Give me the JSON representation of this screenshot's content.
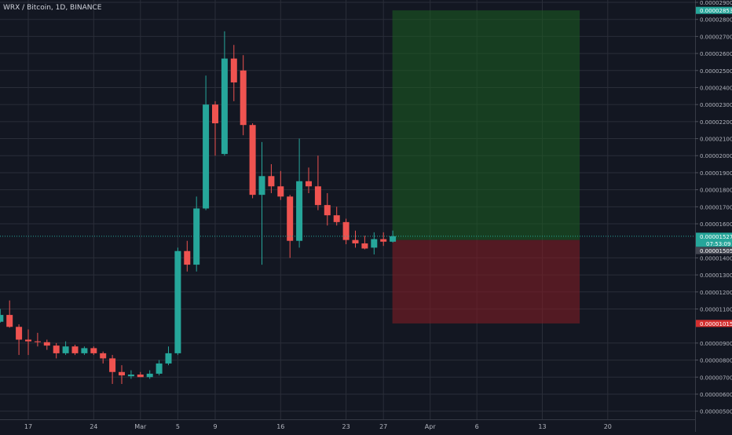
{
  "symbol_title": "WRX / Bitcoin, 1D, BINANCE",
  "colors": {
    "background": "#131722",
    "grid": "#2a2e39",
    "axis_text": "#b2b5be",
    "up": "#26a69a",
    "down": "#ef5350",
    "profit_zone": "#1b5e20",
    "loss_zone": "#7f1d24",
    "target_label": "#26a69a",
    "stop_label": "#d32f2f",
    "current_label": "#26a69a",
    "entry_label": "#434651"
  },
  "price_axis": {
    "min": 4.5e-06,
    "max": 2.9e-05,
    "ticks": [
      "0.00000500",
      "0.00000600",
      "0.00000700",
      "0.00000800",
      "0.00000900",
      "0.00001100",
      "0.00001200",
      "0.00001300",
      "0.00001400",
      "0.00001600",
      "0.00001700",
      "0.00001800",
      "0.00001900",
      "0.00002000",
      "0.00002100",
      "0.00002200",
      "0.00002300",
      "0.00002400",
      "0.00002500",
      "0.00002600",
      "0.00002700",
      "0.00002800",
      "0.00002900"
    ]
  },
  "time_axis": {
    "labels": [
      {
        "date": "2021-02-17",
        "text": "17"
      },
      {
        "date": "2021-02-24",
        "text": "24"
      },
      {
        "date": "2021-03-01",
        "text": "Mar"
      },
      {
        "date": "2021-03-05",
        "text": "5"
      },
      {
        "date": "2021-03-09",
        "text": "9"
      },
      {
        "date": "2021-03-16",
        "text": "16"
      },
      {
        "date": "2021-03-23",
        "text": "23"
      },
      {
        "date": "2021-03-27",
        "text": "27"
      },
      {
        "date": "2021-04-01",
        "text": "Apr"
      },
      {
        "date": "2021-04-06",
        "text": "6"
      },
      {
        "date": "2021-04-13",
        "text": "13"
      },
      {
        "date": "2021-04-20",
        "text": "20"
      }
    ]
  },
  "price_labels": {
    "target": {
      "value": 2.853e-05,
      "text": "0.00002853"
    },
    "current": {
      "value": 1.527e-05,
      "text": "0.00001527",
      "countdown": "07:53:09"
    },
    "entry": {
      "value": 1.505e-05,
      "text": "0.00001505"
    },
    "stop": {
      "value": 1.015e-05,
      "text": "0.00001015"
    }
  },
  "position_tool": {
    "start_date": "2021-03-28",
    "end_date": "2021-04-17",
    "entry": 1.505e-05,
    "target": 2.853e-05,
    "stop": 1.015e-05
  },
  "chart_data": {
    "type": "candlestick",
    "interval": "1D",
    "candles": [
      {
        "date": "2021-02-14",
        "o": 1.025e-05,
        "h": 1.1e-05,
        "l": 1.02e-05,
        "c": 1.065e-05
      },
      {
        "date": "2021-02-15",
        "o": 1.065e-05,
        "h": 1.15e-05,
        "l": 9.9e-06,
        "c": 9.95e-06
      },
      {
        "date": "2021-02-16",
        "o": 9.95e-06,
        "h": 1.01e-05,
        "l": 8.3e-06,
        "c": 9.2e-06
      },
      {
        "date": "2021-02-17",
        "o": 9.2e-06,
        "h": 9.8e-06,
        "l": 8.3e-06,
        "c": 9.1e-06
      },
      {
        "date": "2021-02-18",
        "o": 9.1e-06,
        "h": 9.6e-06,
        "l": 8.8e-06,
        "c": 9.05e-06
      },
      {
        "date": "2021-02-19",
        "o": 9.05e-06,
        "h": 9.2e-06,
        "l": 8.6e-06,
        "c": 8.85e-06
      },
      {
        "date": "2021-02-20",
        "o": 8.85e-06,
        "h": 9e-06,
        "l": 8.1e-06,
        "c": 8.4e-06
      },
      {
        "date": "2021-02-21",
        "o": 8.4e-06,
        "h": 9.1e-06,
        "l": 8.3e-06,
        "c": 8.8e-06
      },
      {
        "date": "2021-02-22",
        "o": 8.8e-06,
        "h": 8.9e-06,
        "l": 8.3e-06,
        "c": 8.4e-06
      },
      {
        "date": "2021-02-23",
        "o": 8.4e-06,
        "h": 8.8e-06,
        "l": 8.3e-06,
        "c": 8.7e-06
      },
      {
        "date": "2021-02-24",
        "o": 8.7e-06,
        "h": 8.8e-06,
        "l": 8.3e-06,
        "c": 8.4e-06
      },
      {
        "date": "2021-02-25",
        "o": 8.4e-06,
        "h": 8.5e-06,
        "l": 7.8e-06,
        "c": 8.1e-06
      },
      {
        "date": "2021-02-26",
        "o": 8.1e-06,
        "h": 8.3e-06,
        "l": 6.6e-06,
        "c": 7.3e-06
      },
      {
        "date": "2021-02-27",
        "o": 7.3e-06,
        "h": 7.7e-06,
        "l": 6.6e-06,
        "c": 7.1e-06
      },
      {
        "date": "2021-02-28",
        "o": 7.05e-06,
        "h": 7.4e-06,
        "l": 6.9e-06,
        "c": 7.15e-06
      },
      {
        "date": "2021-03-01",
        "o": 7.15e-06,
        "h": 7.3e-06,
        "l": 7e-06,
        "c": 7e-06
      },
      {
        "date": "2021-03-02",
        "o": 7e-06,
        "h": 7.4e-06,
        "l": 6.9e-06,
        "c": 7.2e-06
      },
      {
        "date": "2021-03-03",
        "o": 7.2e-06,
        "h": 8e-06,
        "l": 7.1e-06,
        "c": 7.8e-06
      },
      {
        "date": "2021-03-04",
        "o": 7.8e-06,
        "h": 8.8e-06,
        "l": 7.7e-06,
        "c": 8.4e-06
      },
      {
        "date": "2021-03-05",
        "o": 8.4e-06,
        "h": 1.46e-05,
        "l": 8.3e-06,
        "c": 1.44e-05
      },
      {
        "date": "2021-03-06",
        "o": 1.44e-05,
        "h": 1.5e-05,
        "l": 1.32e-05,
        "c": 1.36e-05
      },
      {
        "date": "2021-03-07",
        "o": 1.36e-05,
        "h": 1.76e-05,
        "l": 1.32e-05,
        "c": 1.69e-05
      },
      {
        "date": "2021-03-08",
        "o": 1.69e-05,
        "h": 2.47e-05,
        "l": 1.68e-05,
        "c": 2.3e-05
      },
      {
        "date": "2021-03-09",
        "o": 2.3e-05,
        "h": 2.32e-05,
        "l": 2e-05,
        "c": 2.19e-05
      },
      {
        "date": "2021-03-10",
        "o": 2.01e-05,
        "h": 2.73e-05,
        "l": 2e-05,
        "c": 2.57e-05
      },
      {
        "date": "2021-03-11",
        "o": 2.57e-05,
        "h": 2.65e-05,
        "l": 2.32e-05,
        "c": 2.43e-05
      },
      {
        "date": "2021-03-12",
        "o": 2.5e-05,
        "h": 2.59e-05,
        "l": 2.12e-05,
        "c": 2.18e-05
      },
      {
        "date": "2021-03-13",
        "o": 2.18e-05,
        "h": 2.19e-05,
        "l": 1.75e-05,
        "c": 1.77e-05
      },
      {
        "date": "2021-03-14",
        "o": 1.77e-05,
        "h": 2.08e-05,
        "l": 1.36e-05,
        "c": 1.88e-05
      },
      {
        "date": "2021-03-15",
        "o": 1.88e-05,
        "h": 1.95e-05,
        "l": 1.78e-05,
        "c": 1.82e-05
      },
      {
        "date": "2021-03-16",
        "o": 1.82e-05,
        "h": 1.91e-05,
        "l": 1.74e-05,
        "c": 1.76e-05
      },
      {
        "date": "2021-03-17",
        "o": 1.76e-05,
        "h": 1.77e-05,
        "l": 1.4e-05,
        "c": 1.5e-05
      },
      {
        "date": "2021-03-18",
        "o": 1.5e-05,
        "h": 2.1e-05,
        "l": 1.46e-05,
        "c": 1.85e-05
      },
      {
        "date": "2021-03-19",
        "o": 1.85e-05,
        "h": 1.93e-05,
        "l": 1.78e-05,
        "c": 1.82e-05
      },
      {
        "date": "2021-03-20",
        "o": 1.82e-05,
        "h": 2e-05,
        "l": 1.68e-05,
        "c": 1.71e-05
      },
      {
        "date": "2021-03-21",
        "o": 1.71e-05,
        "h": 1.78e-05,
        "l": 1.59e-05,
        "c": 1.65e-05
      },
      {
        "date": "2021-03-22",
        "o": 1.65e-05,
        "h": 1.7e-05,
        "l": 1.59e-05,
        "c": 1.61e-05
      },
      {
        "date": "2021-03-23",
        "o": 1.61e-05,
        "h": 1.63e-05,
        "l": 1.48e-05,
        "c": 1.505e-05
      },
      {
        "date": "2021-03-24",
        "o": 1.505e-05,
        "h": 1.56e-05,
        "l": 1.46e-05,
        "c": 1.485e-05
      },
      {
        "date": "2021-03-25",
        "o": 1.485e-05,
        "h": 1.53e-05,
        "l": 1.45e-05,
        "c": 1.455e-05
      },
      {
        "date": "2021-03-26",
        "o": 1.46e-05,
        "h": 1.55e-05,
        "l": 1.42e-05,
        "c": 1.51e-05
      },
      {
        "date": "2021-03-27",
        "o": 1.51e-05,
        "h": 1.55e-05,
        "l": 1.47e-05,
        "c": 1.495e-05
      },
      {
        "date": "2021-03-28",
        "o": 1.495e-05,
        "h": 1.56e-05,
        "l": 1.49e-05,
        "c": 1.527e-05
      }
    ]
  }
}
